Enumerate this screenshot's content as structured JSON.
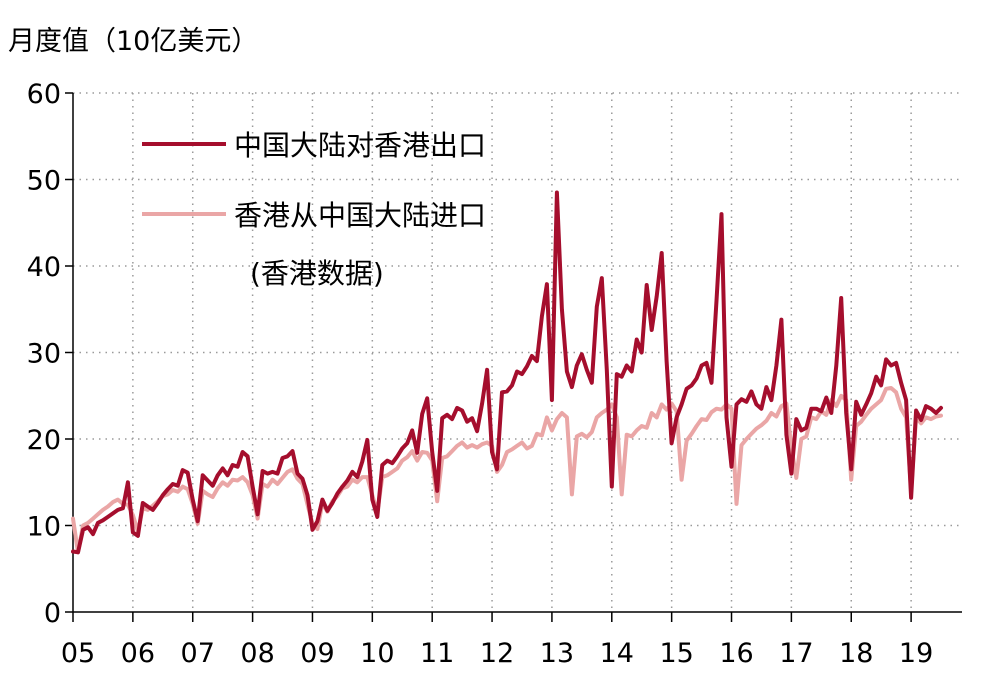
{
  "chart_data": {
    "type": "line",
    "title": "",
    "ylabel": "月度值（10亿美元）",
    "xlabel": "",
    "ylim": [
      0,
      60
    ],
    "yticks": [
      "0",
      "10",
      "20",
      "30",
      "40",
      "50",
      "60"
    ],
    "xlim": [
      2005,
      2019.85
    ],
    "xticks": [
      "05",
      "06",
      "07",
      "08",
      "09",
      "10",
      "11",
      "12",
      "13",
      "14",
      "15",
      "16",
      "17",
      "18",
      "19"
    ],
    "grid": "dotted",
    "legend_position": "top-left",
    "legend_note": "(香港数据)",
    "series": [
      {
        "name": "中国大陆对香港出口",
        "color": "#a50e2d",
        "x_start": 2005.0,
        "x_step": 0.08333,
        "values": [
          7.0,
          6.9,
          9.5,
          9.8,
          9.0,
          10.3,
          10.6,
          11.0,
          11.4,
          11.8,
          12.0,
          15.0,
          9.2,
          8.8,
          12.6,
          12.2,
          11.8,
          12.6,
          13.5,
          14.2,
          14.8,
          14.6,
          16.4,
          16.1,
          13.0,
          10.5,
          15.8,
          15.2,
          14.6,
          15.8,
          16.6,
          15.8,
          17.0,
          16.8,
          18.5,
          18.0,
          14.5,
          11.3,
          16.3,
          16.0,
          16.2,
          16.0,
          17.8,
          18.0,
          18.6,
          16.0,
          15.4,
          13.5,
          9.5,
          10.5,
          13.0,
          11.7,
          12.6,
          13.7,
          14.5,
          15.2,
          16.2,
          15.6,
          17.4,
          19.9,
          13.0,
          11.0,
          17.0,
          17.5,
          17.2,
          18.0,
          18.9,
          19.5,
          21.0,
          18.4,
          22.9,
          24.7,
          18.5,
          14.0,
          22.4,
          22.8,
          22.3,
          23.6,
          23.3,
          22.0,
          22.4,
          20.9,
          24.1,
          28.0,
          18.5,
          16.5,
          25.4,
          25.5,
          26.2,
          27.8,
          27.5,
          28.4,
          29.6,
          29.0,
          34.2,
          37.9,
          24.5,
          48.5,
          35.0,
          27.8,
          26.0,
          28.5,
          29.8,
          28.0,
          26.5,
          35.3,
          38.6,
          28.0,
          14.5,
          27.5,
          27.2,
          28.5,
          27.8,
          31.5,
          30.0,
          37.8,
          32.6,
          36.5,
          41.5,
          29.0,
          19.5,
          22.5,
          24.0,
          25.8,
          26.2,
          27.0,
          28.5,
          28.8,
          26.5,
          36.0,
          46.0,
          22.5,
          16.8,
          24.0,
          24.6,
          24.3,
          25.5,
          24.0,
          23.5,
          26.0,
          24.5,
          28.5,
          33.8,
          20.5,
          16.0,
          22.3,
          21.0,
          21.3,
          23.5,
          23.5,
          23.2,
          24.8,
          23.0,
          28.5,
          36.3,
          23.0,
          16.5,
          24.3,
          22.8,
          24.0,
          25.3,
          27.2,
          26.2,
          29.2,
          28.5,
          28.8,
          26.5,
          24.5,
          13.2,
          23.3,
          22.2,
          23.8,
          23.5,
          23.0,
          23.6
        ]
      },
      {
        "name": "香港从中国大陆进口",
        "color": "#eaa6a6",
        "x_start": 2005.0,
        "x_step": 0.08333,
        "values": [
          10.8,
          6.9,
          10.0,
          10.3,
          10.8,
          11.3,
          11.8,
          12.2,
          12.7,
          13.0,
          12.5,
          12.4,
          11.2,
          9.3,
          12.0,
          11.8,
          12.3,
          12.8,
          13.4,
          13.6,
          14.1,
          13.9,
          14.5,
          14.2,
          12.5,
          10.2,
          14.0,
          13.6,
          13.3,
          14.3,
          15.0,
          14.6,
          15.3,
          15.2,
          15.6,
          15.0,
          13.5,
          10.8,
          14.8,
          14.5,
          15.3,
          14.8,
          15.5,
          16.2,
          16.5,
          15.4,
          14.8,
          12.4,
          10.2,
          9.6,
          12.6,
          11.6,
          12.8,
          13.4,
          14.3,
          14.5,
          15.3,
          15.0,
          15.6,
          15.6,
          13.5,
          11.5,
          15.6,
          15.8,
          16.2,
          16.6,
          17.5,
          17.9,
          18.6,
          17.5,
          18.5,
          18.4,
          17.5,
          12.8,
          17.8,
          18.0,
          18.6,
          19.2,
          19.6,
          19.0,
          19.3,
          19.0,
          19.4,
          19.6,
          19.2,
          16.2,
          17.0,
          18.5,
          18.8,
          19.2,
          19.6,
          18.9,
          19.2,
          20.6,
          20.4,
          22.5,
          21.0,
          22.3,
          23.0,
          22.5,
          13.6,
          20.3,
          20.6,
          20.2,
          20.8,
          22.5,
          23.0,
          23.4,
          24.0,
          22.5,
          13.6,
          20.5,
          20.3,
          21.0,
          21.5,
          21.3,
          23.0,
          22.5,
          24.0,
          23.4,
          24.1,
          23.2,
          15.3,
          19.8,
          20.6,
          21.5,
          22.3,
          22.2,
          23.1,
          23.5,
          23.4,
          24.0,
          23.5,
          12.5,
          19.3,
          20.0,
          20.6,
          21.2,
          21.6,
          22.1,
          23.0,
          22.6,
          23.8,
          24.1,
          19.0,
          15.5,
          20.0,
          20.3,
          22.5,
          22.3,
          23.2,
          22.8,
          24.5,
          23.8,
          25.0,
          24.5,
          15.3,
          21.5,
          22.0,
          22.8,
          23.5,
          24.0,
          24.5,
          25.8,
          25.9,
          25.4,
          23.5,
          22.5,
          14.0,
          22.5,
          21.8,
          22.5,
          22.3,
          22.6,
          22.7
        ]
      }
    ]
  }
}
